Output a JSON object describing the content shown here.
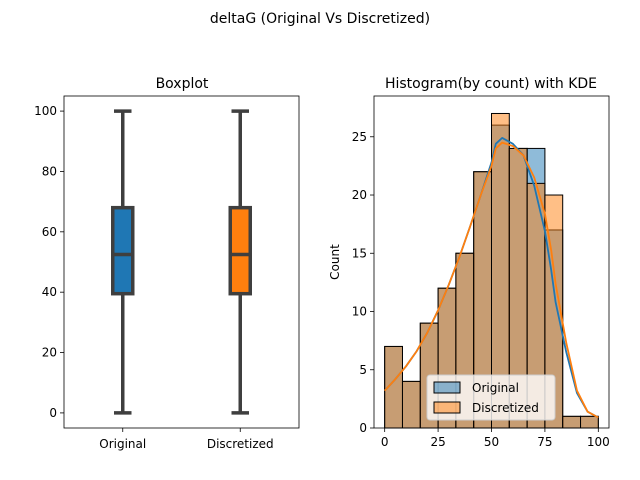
{
  "suptitle": "deltaG (Original Vs Discretized)",
  "colors": {
    "original": "#1f77b4",
    "discretized": "#ff7f0e",
    "box_line": "#3f3f3f"
  },
  "chart_data": [
    {
      "type": "box",
      "title": "Boxplot",
      "xlabel": "",
      "ylabel": "",
      "categories": [
        "Original",
        "Discretized"
      ],
      "ylim": [
        -5,
        105
      ],
      "yticks": [
        0,
        20,
        40,
        60,
        80,
        100
      ],
      "boxes": [
        {
          "name": "Original",
          "min": 0,
          "q1": 39.5,
          "median": 52.5,
          "q3": 68,
          "max": 100
        },
        {
          "name": "Discretized",
          "min": 0,
          "q1": 39.5,
          "median": 52.5,
          "q3": 68,
          "max": 100
        }
      ]
    },
    {
      "type": "bar",
      "title": "Histogram(by count) with KDE",
      "xlabel": "",
      "ylabel": "Count",
      "xlim": [
        -5,
        105
      ],
      "ylim": [
        0,
        28.5
      ],
      "xticks": [
        0,
        25,
        50,
        75,
        100
      ],
      "yticks": [
        0,
        5,
        10,
        15,
        20,
        25
      ],
      "legend": "lower-center",
      "bin_width": 8.33,
      "bin_edges": [
        0,
        8.33,
        16.67,
        25,
        33.33,
        41.67,
        50,
        58.33,
        66.67,
        75,
        83.33,
        91.67,
        100
      ],
      "series": [
        {
          "name": "Original",
          "values": [
            7,
            4,
            9,
            12,
            15,
            22,
            26,
            24,
            24,
            17,
            1,
            1
          ]
        },
        {
          "name": "Discretized",
          "values": [
            7,
            4,
            9,
            12,
            15,
            22,
            27,
            24,
            21,
            20,
            1,
            1
          ]
        }
      ],
      "kde": [
        {
          "name": "Original",
          "x": [
            0,
            5,
            10,
            15,
            20,
            25,
            30,
            35,
            40,
            45,
            50,
            52,
            55,
            60,
            65,
            70,
            75,
            78,
            80,
            85,
            90,
            95,
            100
          ],
          "y": [
            3.2,
            4.2,
            5.3,
            6.6,
            8.2,
            10.1,
            12.3,
            14.7,
            17.3,
            20.0,
            22.8,
            24.4,
            24.9,
            24.4,
            23.4,
            20.8,
            16.9,
            13.5,
            10.8,
            6.5,
            3.0,
            1.4,
            0.9
          ]
        },
        {
          "name": "Discretized",
          "x": [
            0,
            5,
            10,
            15,
            20,
            25,
            30,
            35,
            40,
            45,
            50,
            52,
            55,
            60,
            65,
            70,
            75,
            78,
            80,
            85,
            90,
            95,
            100
          ],
          "y": [
            3.2,
            4.2,
            5.3,
            6.6,
            8.2,
            10.1,
            12.3,
            14.7,
            17.3,
            20.0,
            22.5,
            24.0,
            24.5,
            24.2,
            23.4,
            21.5,
            18.4,
            15.2,
            12.4,
            7.3,
            3.2,
            1.4,
            0.9
          ]
        }
      ]
    }
  ]
}
